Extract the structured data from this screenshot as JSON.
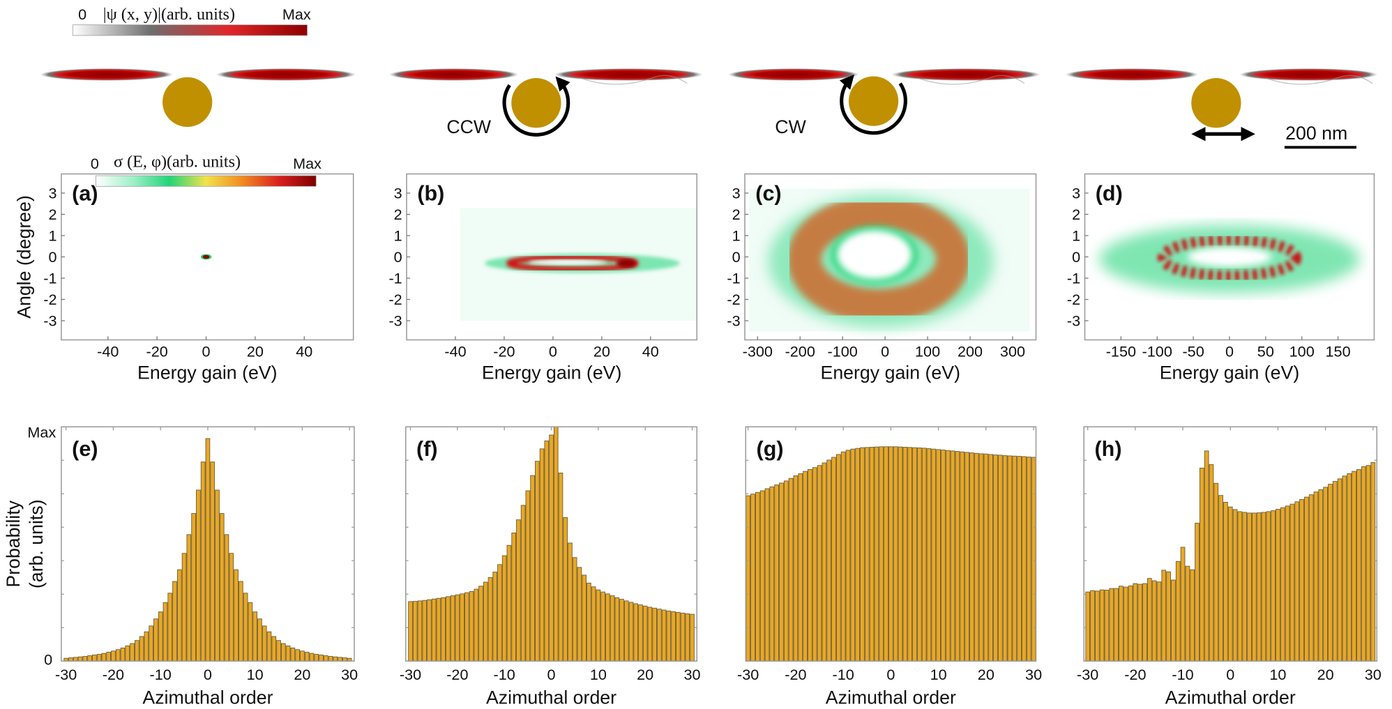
{
  "colorbars": {
    "wavefunction": {
      "min_label": "0",
      "label": "|ψ (x, y)|(arb. units)",
      "max_label": "Max",
      "colors": [
        "#ffffff",
        "#6e6e6e",
        "#e0262a",
        "#8e0000"
      ]
    },
    "cross_section": {
      "min_label": "0",
      "label": "σ (E, φ)(arb. units)",
      "max_label": "Max",
      "colors": [
        "#ffffff",
        "#9ff0c8",
        "#22d47a",
        "#f2e24a",
        "#f08a20",
        "#d81f1f",
        "#7e0000"
      ]
    }
  },
  "cartoons": {
    "particle_color": "#c09000",
    "wave_color": "#b00000",
    "rotation_labels": [
      "CCW",
      "CW"
    ],
    "scale_bar_label": "200 nm"
  },
  "chart_data": [
    {
      "type": "heatmap",
      "panel_label": "(a)",
      "xlabel": "Energy gain (eV)",
      "ylabel": "Angle (degree)",
      "xlim": [
        -59,
        60
      ],
      "ylim": [
        -3.9,
        3.9
      ],
      "xticks": [
        -40,
        -20,
        0,
        20,
        40
      ],
      "yticks": [
        3,
        2,
        1,
        0,
        -1,
        -2,
        -3
      ]
    },
    {
      "type": "heatmap",
      "panel_label": "(b)",
      "xlabel": "Energy gain (eV)",
      "xlim": [
        -60,
        59
      ],
      "ylim": [
        -3.9,
        3.9
      ],
      "xticks": [
        -40,
        -20,
        0,
        20,
        40
      ],
      "yticks": [
        3,
        2,
        1,
        0,
        -1,
        -2,
        -3
      ]
    },
    {
      "type": "heatmap",
      "panel_label": "(c)",
      "xlabel": "Energy gain (eV)",
      "xlim": [
        -330,
        355
      ],
      "ylim": [
        -3.9,
        3.9
      ],
      "xticks": [
        -300,
        -200,
        -100,
        0,
        100,
        200,
        300
      ],
      "yticks": [
        3,
        2,
        1,
        0,
        -1,
        -2,
        -3
      ]
    },
    {
      "type": "heatmap",
      "panel_label": "(d)",
      "xlabel": "Energy gain (eV)",
      "xlim": [
        -200,
        200
      ],
      "ylim": [
        -3.9,
        3.9
      ],
      "xticks": [
        -150,
        -100,
        -50,
        0,
        50,
        100,
        150
      ],
      "yticks": [
        3,
        2,
        1,
        0,
        -1,
        -2,
        -3
      ]
    },
    {
      "type": "bar",
      "panel_label": "(e)",
      "xlabel": "Azimuthal order",
      "ylabel_lines": [
        "Probability",
        "(arb. units)"
      ],
      "ytick_labels": [
        "0",
        "Max"
      ],
      "xlim": [
        -31,
        31
      ],
      "ylim": [
        0,
        1
      ],
      "xticks": [
        -30,
        -20,
        -10,
        0,
        10,
        20,
        30
      ],
      "bar_color": "#e9a823",
      "x_start": -30,
      "values": [
        0.012,
        0.014,
        0.016,
        0.018,
        0.02,
        0.023,
        0.026,
        0.029,
        0.033,
        0.038,
        0.043,
        0.049,
        0.056,
        0.065,
        0.075,
        0.088,
        0.105,
        0.125,
        0.15,
        0.18,
        0.21,
        0.25,
        0.29,
        0.34,
        0.39,
        0.46,
        0.54,
        0.63,
        0.73,
        0.85,
        0.95,
        0.85,
        0.73,
        0.63,
        0.54,
        0.46,
        0.39,
        0.34,
        0.29,
        0.25,
        0.21,
        0.18,
        0.15,
        0.125,
        0.105,
        0.088,
        0.075,
        0.065,
        0.056,
        0.049,
        0.043,
        0.038,
        0.033,
        0.029,
        0.026,
        0.023,
        0.02,
        0.018,
        0.016,
        0.014,
        0.012
      ]
    },
    {
      "type": "bar",
      "panel_label": "(f)",
      "xlabel": "Azimuthal order",
      "xlim": [
        -31,
        31
      ],
      "ylim": [
        0,
        1
      ],
      "xticks": [
        -30,
        -20,
        -10,
        0,
        10,
        20,
        30
      ],
      "bar_color": "#e9a823",
      "x_start": -30,
      "values": [
        0.254,
        0.255,
        0.257,
        0.259,
        0.262,
        0.265,
        0.268,
        0.271,
        0.275,
        0.279,
        0.283,
        0.287,
        0.292,
        0.297,
        0.307,
        0.32,
        0.337,
        0.357,
        0.38,
        0.412,
        0.45,
        0.494,
        0.547,
        0.603,
        0.665,
        0.727,
        0.792,
        0.853,
        0.906,
        0.94,
        0.965,
        1.0,
        0.803,
        0.613,
        0.504,
        0.442,
        0.4,
        0.367,
        0.333,
        0.317,
        0.304,
        0.295,
        0.287,
        0.279,
        0.271,
        0.264,
        0.257,
        0.251,
        0.245,
        0.24,
        0.235,
        0.23,
        0.226,
        0.222,
        0.218,
        0.214,
        0.211,
        0.208,
        0.205,
        0.202,
        0.2
      ]
    },
    {
      "type": "bar",
      "panel_label": "(g)",
      "xlabel": "Azimuthal order",
      "xlim": [
        -30.5,
        30.5
      ],
      "ylim": [
        0,
        1
      ],
      "xticks": [
        -30,
        -20,
        -10,
        0,
        10,
        20,
        30
      ],
      "bar_color": "#e9a823",
      "x_start": -30,
      "values": [
        0.706,
        0.713,
        0.72,
        0.727,
        0.736,
        0.744,
        0.752,
        0.76,
        0.769,
        0.78,
        0.791,
        0.8,
        0.81,
        0.818,
        0.826,
        0.835,
        0.846,
        0.858,
        0.87,
        0.882,
        0.893,
        0.9,
        0.905,
        0.908,
        0.911,
        0.912,
        0.913,
        0.914,
        0.915,
        0.915,
        0.915,
        0.915,
        0.914,
        0.913,
        0.912,
        0.911,
        0.91,
        0.909,
        0.907,
        0.905,
        0.903,
        0.901,
        0.899,
        0.897,
        0.895,
        0.893,
        0.891,
        0.889,
        0.887,
        0.885,
        0.884,
        0.882,
        0.88,
        0.879,
        0.877,
        0.876,
        0.875,
        0.874,
        0.873,
        0.871,
        0.87
      ]
    },
    {
      "type": "bar",
      "panel_label": "(h)",
      "xlabel": "Azimuthal order",
      "xlim": [
        -30.8,
        30.8
      ],
      "ylim": [
        0,
        1
      ],
      "xticks": [
        -30,
        -20,
        -10,
        0,
        10,
        20,
        30
      ],
      "bar_color": "#e9a823",
      "x_start": -30,
      "values": [
        0.295,
        0.301,
        0.299,
        0.304,
        0.303,
        0.31,
        0.31,
        0.32,
        0.316,
        0.321,
        0.331,
        0.328,
        0.331,
        0.353,
        0.343,
        0.338,
        0.388,
        0.381,
        0.346,
        0.425,
        0.486,
        0.405,
        0.39,
        0.589,
        0.824,
        0.897,
        0.839,
        0.759,
        0.707,
        0.678,
        0.658,
        0.647,
        0.638,
        0.635,
        0.632,
        0.632,
        0.633,
        0.635,
        0.638,
        0.642,
        0.648,
        0.655,
        0.662,
        0.67,
        0.68,
        0.69,
        0.7,
        0.71,
        0.722,
        0.732,
        0.742,
        0.755,
        0.767,
        0.778,
        0.79,
        0.8,
        0.81,
        0.818,
        0.83,
        0.835,
        0.848
      ]
    }
  ]
}
